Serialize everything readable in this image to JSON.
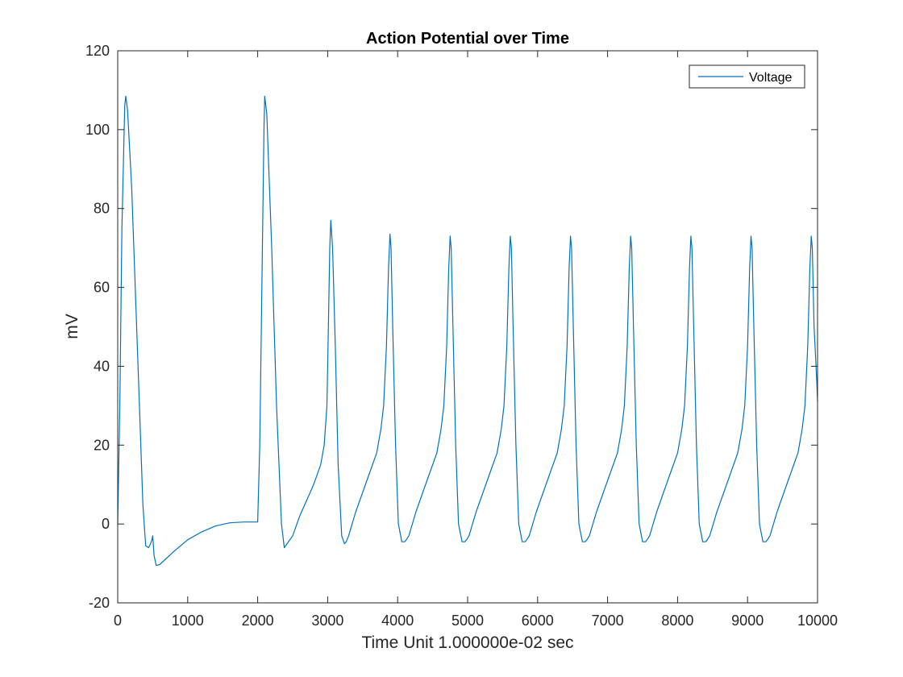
{
  "chart_data": {
    "type": "line",
    "title": "Action Potential over Time",
    "xlabel": "Time Unit 1.000000e-02 sec",
    "ylabel": "mV",
    "xlim": [
      0,
      10000
    ],
    "ylim": [
      -20,
      120
    ],
    "x_ticks": [
      0,
      1000,
      2000,
      3000,
      4000,
      5000,
      6000,
      7000,
      8000,
      9000,
      10000
    ],
    "y_ticks": [
      -20,
      0,
      20,
      40,
      60,
      80,
      100,
      120
    ],
    "grid": false,
    "legend_position": "top-right",
    "series": [
      {
        "name": "Voltage",
        "color": "#0072BD",
        "x": [
          0,
          30,
          60,
          100,
          115,
          140,
          200,
          260,
          320,
          360,
          400,
          440,
          470,
          490,
          500,
          520,
          550,
          600,
          800,
          1000,
          1200,
          1400,
          1600,
          1800,
          1950,
          2000,
          2030,
          2060,
          2090,
          2100,
          2130,
          2200,
          2270,
          2340,
          2380,
          2420,
          2500,
          2600,
          2700,
          2800,
          2900,
          2950,
          2990,
          3010,
          3030,
          3045,
          3070,
          3110,
          3150,
          3200,
          3240,
          3265,
          3300,
          3400,
          3500,
          3600,
          3700,
          3760,
          3800,
          3840,
          3870,
          3890,
          3905,
          3930,
          3970,
          4010,
          4060,
          4100,
          4125,
          4160,
          4260,
          4360,
          4460,
          4560,
          4620,
          4660,
          4700,
          4730,
          4750,
          4765,
          4790,
          4830,
          4870,
          4920,
          4960,
          4985,
          5020,
          5120,
          5220,
          5320,
          5420,
          5480,
          5520,
          5560,
          5590,
          5610,
          5625,
          5650,
          5690,
          5730,
          5780,
          5820,
          5845,
          5880,
          5980,
          6080,
          6180,
          6280,
          6340,
          6380,
          6420,
          6450,
          6470,
          6485,
          6510,
          6550,
          6590,
          6640,
          6680,
          6705,
          6740,
          6840,
          6940,
          7040,
          7140,
          7200,
          7240,
          7280,
          7310,
          7330,
          7345,
          7370,
          7410,
          7450,
          7500,
          7540,
          7565,
          7600,
          7700,
          7800,
          7900,
          8000,
          8060,
          8100,
          8140,
          8170,
          8190,
          8205,
          8230,
          8270,
          8310,
          8360,
          8400,
          8425,
          8460,
          8560,
          8660,
          8760,
          8860,
          8920,
          8960,
          9000,
          9030,
          9050,
          9065,
          9090,
          9130,
          9170,
          9220,
          9260,
          9285,
          9320,
          9420,
          9520,
          9620,
          9720,
          9780,
          9820,
          9860,
          9890,
          9910,
          9925,
          9950,
          9990,
          10000
        ],
        "y": [
          0,
          30,
          75,
          106,
          108.5,
          105,
          85,
          55,
          25,
          5,
          -5.5,
          -6,
          -5,
          -4,
          -3,
          -8,
          -10.5,
          -10.3,
          -7,
          -4,
          -2,
          -0.5,
          0.3,
          0.5,
          0.5,
          0.5,
          20,
          60,
          100,
          108.5,
          104,
          70,
          30,
          0,
          -6,
          -5,
          -3,
          2,
          6,
          10,
          15,
          20,
          30,
          50,
          70,
          77,
          70,
          45,
          15,
          -3,
          -5,
          -4.5,
          -3,
          3,
          8,
          13,
          18,
          24,
          30,
          45,
          65,
          73.5,
          70,
          50,
          20,
          0,
          -4.5,
          -4.5,
          -4,
          -3,
          3,
          8,
          13,
          18,
          24,
          30,
          45,
          65,
          73,
          70,
          50,
          20,
          0,
          -4.5,
          -4.5,
          -4,
          -3,
          3,
          8,
          13,
          18,
          24,
          30,
          45,
          65,
          73,
          70,
          50,
          20,
          0,
          -4.5,
          -4.5,
          -4,
          -3,
          3,
          8,
          13,
          18,
          24,
          30,
          45,
          65,
          73,
          70,
          50,
          20,
          0,
          -4.5,
          -4.5,
          -4,
          -3,
          3,
          8,
          13,
          18,
          24,
          30,
          45,
          65,
          73,
          70,
          50,
          20,
          0,
          -4.5,
          -4.5,
          -4,
          -3,
          3,
          8,
          13,
          18,
          24,
          30,
          45,
          65,
          73,
          70,
          50,
          20,
          0,
          -4.5,
          -4.5,
          -4,
          -3,
          3,
          8,
          13,
          18,
          24,
          30,
          45,
          65,
          73,
          70,
          50,
          20,
          0,
          -4.5,
          -4.5,
          -4,
          -3,
          3,
          8,
          13,
          18,
          24,
          30,
          45,
          65,
          73,
          70,
          50,
          36,
          31
        ]
      }
    ]
  }
}
